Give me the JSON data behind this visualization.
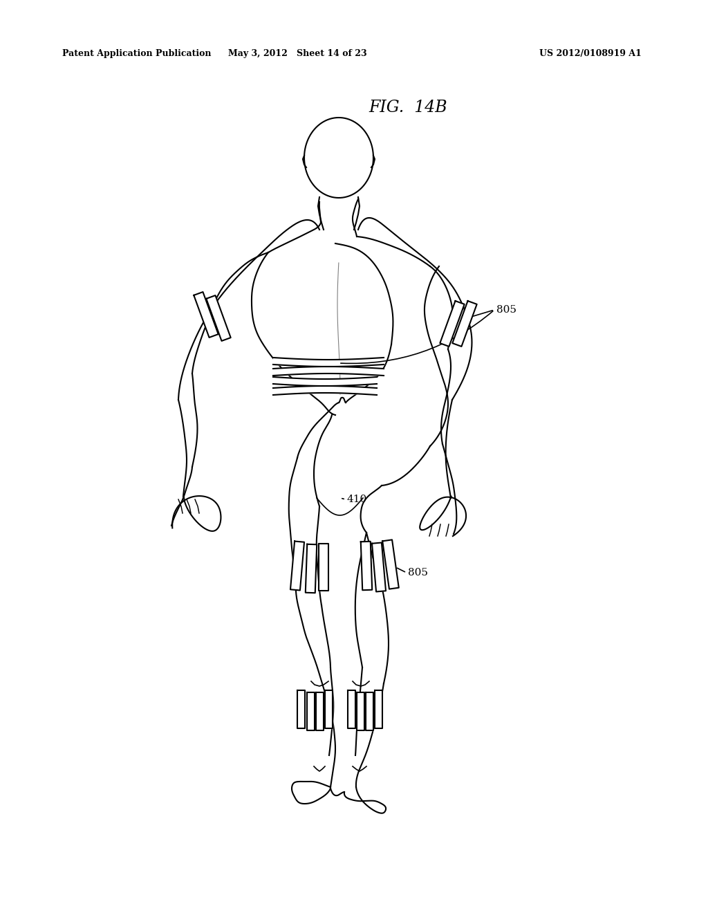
{
  "background_color": "#ffffff",
  "header_left": "Patent Application Publication",
  "header_mid": "May 3, 2012   Sheet 14 of 23",
  "header_right": "US 2012/0108919 A1",
  "fig_label": "FIG.  14B",
  "label_805_top": "805",
  "label_805_bot": "805",
  "label_410": "410",
  "line_color": "#000000",
  "lw": 1.5
}
